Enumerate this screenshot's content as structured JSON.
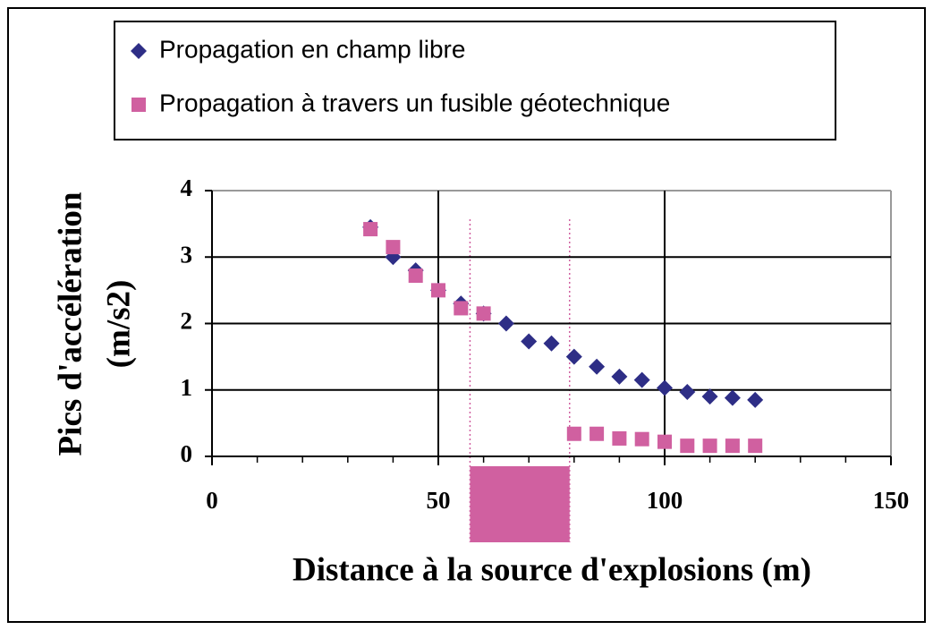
{
  "chart_data": {
    "type": "scatter",
    "xlabel": "Distance à la source d'explosions (m)",
    "ylabel": [
      "Pics d'accélération",
      "(m/s2)"
    ],
    "xlim": [
      0,
      150
    ],
    "xticks": [
      0,
      50,
      100,
      150
    ],
    "xminorticks": [
      10,
      20,
      30,
      40,
      60,
      70,
      80,
      90,
      110,
      120,
      130,
      140
    ],
    "ylim": [
      0,
      4
    ],
    "yticks": [
      0,
      1,
      2,
      3,
      4
    ],
    "grid": true,
    "highlight_xrange": [
      57,
      79
    ],
    "highlight_color": "#d060a0",
    "series": [
      {
        "name": "Propagation en champ libre",
        "color": "#2e2e86",
        "marker": "diamond",
        "x": [
          35,
          40,
          45,
          50,
          55,
          60,
          65,
          70,
          75,
          80,
          85,
          90,
          95,
          100,
          105,
          110,
          115,
          120
        ],
        "values": [
          3.45,
          3.0,
          2.8,
          2.5,
          2.3,
          2.15,
          2.0,
          1.73,
          1.7,
          1.5,
          1.35,
          1.2,
          1.15,
          1.03,
          0.97,
          0.9,
          0.88,
          0.85
        ]
      },
      {
        "name": "Propagation à travers un fusible géotechnique",
        "color": "#d060a0",
        "marker": "square",
        "x": [
          35,
          40,
          45,
          50,
          55,
          60,
          80,
          85,
          90,
          95,
          100,
          105,
          110,
          115,
          120
        ],
        "values": [
          3.42,
          3.15,
          2.72,
          2.5,
          2.23,
          2.15,
          0.34,
          0.34,
          0.27,
          0.26,
          0.22,
          0.16,
          0.16,
          0.16,
          0.16
        ]
      }
    ]
  }
}
